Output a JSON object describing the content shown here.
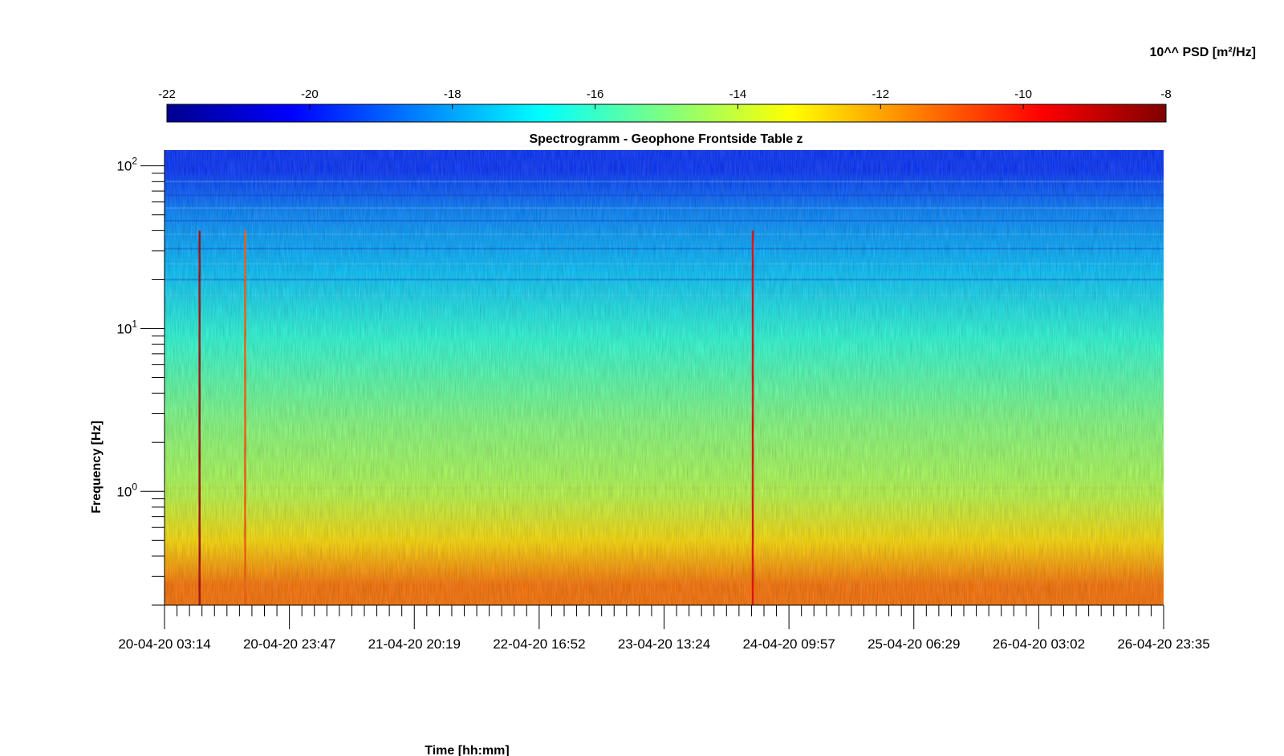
{
  "chart_data": {
    "type": "heatmap",
    "title": "Spectrogramm - Geophone Frontside Table z",
    "xlabel": "Time [hh:mm]",
    "ylabel": "Frequency [Hz]",
    "colorbar": {
      "label": "10^^ PSD [m²/Hz]",
      "ticks": [
        "-22",
        "-20",
        "-18",
        "-16",
        "-14",
        "-12",
        "-10",
        "-8"
      ],
      "range": [
        -22,
        -8
      ],
      "colormap": "jet",
      "placement": "top"
    },
    "x_ticks": [
      "20-04-20 03:14",
      "20-04-20 23:47",
      "21-04-20 20:19",
      "22-04-20 16:52",
      "23-04-20 13:24",
      "24-04-20 09:57",
      "25-04-20 06:29",
      "26-04-20 03:02",
      "26-04-20 23:35"
    ],
    "xlim": [
      "20-04-20 03:14",
      "26-04-20 23:35"
    ],
    "y_scale": "log",
    "y_ticks": [
      {
        "base": "10",
        "exp": "2",
        "value": 100
      },
      {
        "base": "10",
        "exp": "1",
        "value": 10
      },
      {
        "base": "10",
        "exp": "0",
        "value": 1
      }
    ],
    "ylim": [
      0.2,
      125
    ],
    "grid": false,
    "frequency_bands_log10_psd": [
      {
        "freq_low": 0.2,
        "freq_high": 0.35,
        "value": -11.3
      },
      {
        "freq_low": 0.35,
        "freq_high": 0.7,
        "value": -12.8
      },
      {
        "freq_low": 0.7,
        "freq_high": 1.5,
        "value": -14.3
      },
      {
        "freq_low": 1.5,
        "freq_high": 5,
        "value": -15.0
      },
      {
        "freq_low": 5,
        "freq_high": 15,
        "value": -16.2
      },
      {
        "freq_low": 15,
        "freq_high": 35,
        "value": -17.6
      },
      {
        "freq_low": 35,
        "freq_high": 70,
        "value": -18.4
      },
      {
        "freq_low": 70,
        "freq_high": 125,
        "value": -19.6
      }
    ],
    "transient_events": [
      {
        "time": "20-04-20 09:00",
        "log10_psd": -8.5
      },
      {
        "time": "20-04-20 16:30",
        "log10_psd": -11
      },
      {
        "time": "24-04-20 04:00",
        "log10_psd": -9.5
      }
    ]
  }
}
